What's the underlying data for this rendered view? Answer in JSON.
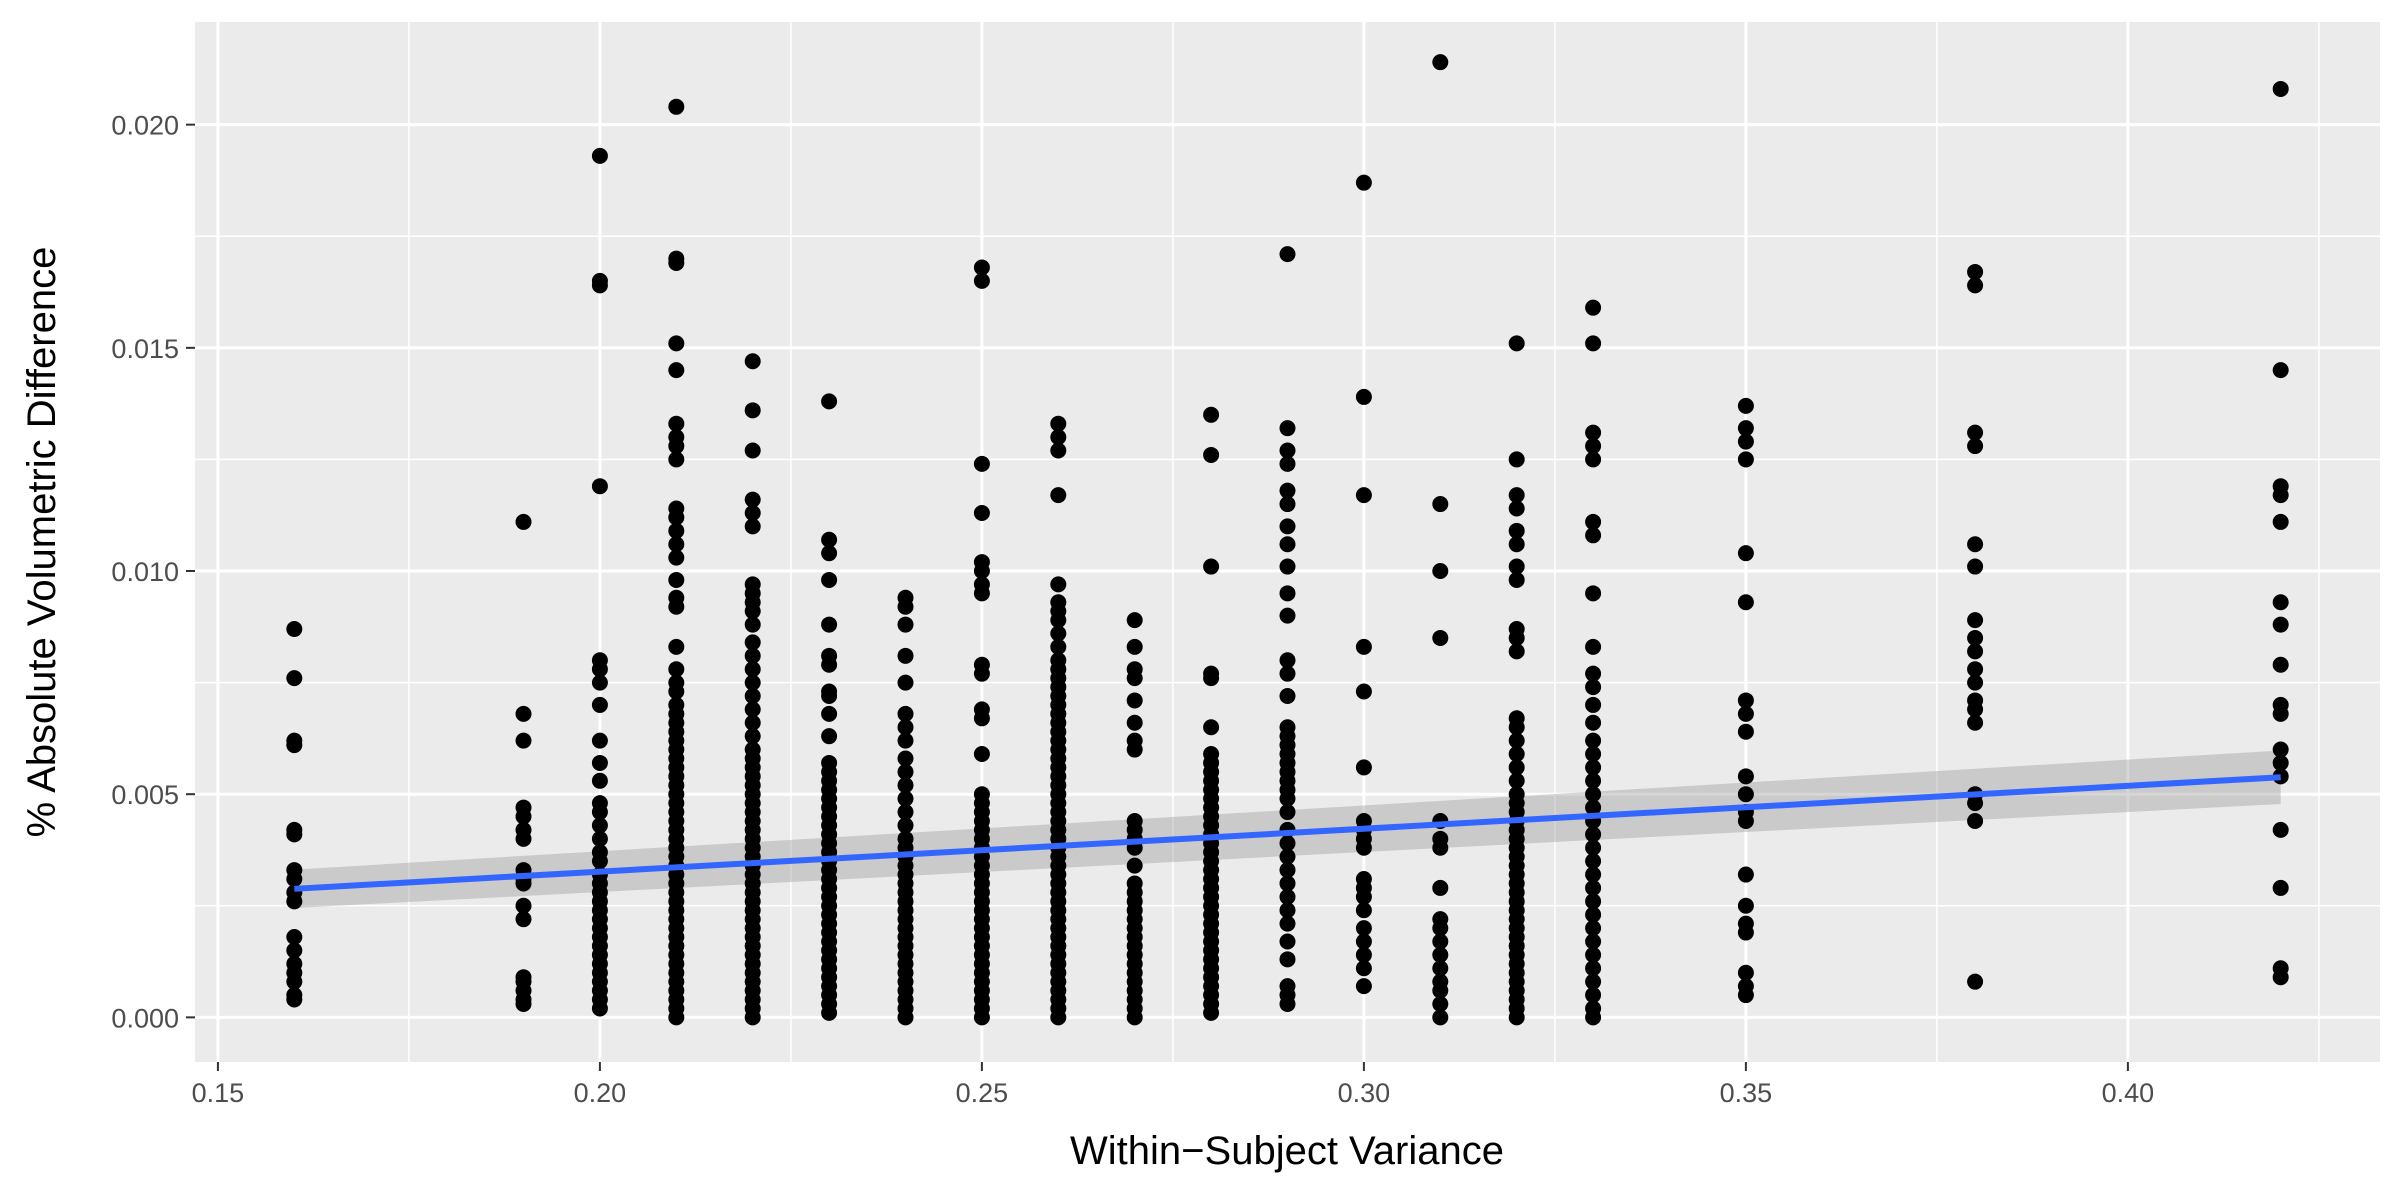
{
  "chart_data": {
    "type": "scatter",
    "title": "",
    "xlabel": "Within−Subject Variance",
    "ylabel": "% Absolute Volumetric Difference",
    "xlim": [
      0.147,
      0.433
    ],
    "ylim": [
      -0.001,
      0.0223
    ],
    "grid": true,
    "legend": "none",
    "x_ticks": [
      0.15,
      0.2,
      0.25,
      0.3,
      0.35,
      0.4
    ],
    "x_tick_labels": [
      "0.15",
      "0.20",
      "0.25",
      "0.30",
      "0.35",
      "0.40"
    ],
    "y_ticks": [
      0.0,
      0.005,
      0.01,
      0.015,
      0.02
    ],
    "y_tick_labels": [
      "0.000",
      "0.005",
      "0.010",
      "0.015",
      "0.020"
    ],
    "colors": {
      "panel": "#ebebeb",
      "grid": "#ffffff",
      "point": "#000000",
      "fit": "#3366ff",
      "band": "#999999"
    },
    "groups": [
      {
        "x": 0.16,
        "y": [
          0.0087,
          0.0076,
          0.0062,
          0.0061,
          0.0042,
          0.0041,
          0.0033,
          0.0031,
          0.0028,
          0.0026,
          0.0018,
          0.0015,
          0.0012,
          0.001,
          0.0008,
          0.0005,
          0.0004
        ]
      },
      {
        "x": 0.19,
        "y": [
          0.0111,
          0.0068,
          0.0062,
          0.0047,
          0.0045,
          0.0042,
          0.004,
          0.0033,
          0.0031,
          0.003,
          0.0025,
          0.0022,
          0.0009,
          0.0008,
          0.0006,
          0.0004,
          0.0003
        ]
      },
      {
        "x": 0.2,
        "y": [
          0.0193,
          0.0165,
          0.0164,
          0.0119,
          0.008,
          0.0078,
          0.0075,
          0.007,
          0.0062,
          0.0057,
          0.0053,
          0.0048,
          0.0046,
          0.0043,
          0.004,
          0.0037,
          0.0035,
          0.0032,
          0.003,
          0.0028,
          0.0026,
          0.0024,
          0.0022,
          0.002,
          0.0018,
          0.0016,
          0.0014,
          0.0012,
          0.001,
          0.0008,
          0.0006,
          0.0004,
          0.0002
        ]
      },
      {
        "x": 0.21,
        "y": [
          0.0204,
          0.017,
          0.0169,
          0.0151,
          0.0145,
          0.0133,
          0.013,
          0.0128,
          0.0125,
          0.0114,
          0.0112,
          0.0109,
          0.0106,
          0.0103,
          0.0098,
          0.0094,
          0.0092,
          0.0083,
          0.0078,
          0.0075,
          0.0073,
          0.007,
          0.0068,
          0.0066,
          0.0064,
          0.0062,
          0.006,
          0.0058,
          0.0056,
          0.0054,
          0.0052,
          0.005,
          0.0048,
          0.0046,
          0.0044,
          0.0042,
          0.004,
          0.0038,
          0.0036,
          0.0034,
          0.0032,
          0.003,
          0.0028,
          0.0026,
          0.0024,
          0.0022,
          0.002,
          0.0018,
          0.0016,
          0.0014,
          0.0012,
          0.001,
          0.0008,
          0.0006,
          0.0004,
          0.0002,
          0.0
        ]
      },
      {
        "x": 0.22,
        "y": [
          0.0147,
          0.0136,
          0.0127,
          0.0116,
          0.0113,
          0.011,
          0.0097,
          0.0095,
          0.0093,
          0.0091,
          0.0088,
          0.0084,
          0.0081,
          0.0078,
          0.0075,
          0.0072,
          0.0069,
          0.0066,
          0.0063,
          0.006,
          0.0058,
          0.0056,
          0.0054,
          0.0052,
          0.005,
          0.0048,
          0.0046,
          0.0044,
          0.0042,
          0.004,
          0.0038,
          0.0036,
          0.0034,
          0.0032,
          0.003,
          0.0028,
          0.0026,
          0.0024,
          0.0022,
          0.002,
          0.0018,
          0.0016,
          0.0014,
          0.0012,
          0.001,
          0.0008,
          0.0006,
          0.0004,
          0.0002,
          0.0
        ]
      },
      {
        "x": 0.23,
        "y": [
          0.0138,
          0.0107,
          0.0104,
          0.0098,
          0.0088,
          0.0081,
          0.0079,
          0.0073,
          0.0072,
          0.0068,
          0.0063,
          0.0057,
          0.0055,
          0.0053,
          0.0051,
          0.0049,
          0.0047,
          0.0045,
          0.0043,
          0.0041,
          0.0039,
          0.0037,
          0.0035,
          0.0033,
          0.0031,
          0.0029,
          0.0027,
          0.0025,
          0.0023,
          0.0021,
          0.0019,
          0.0017,
          0.0015,
          0.0013,
          0.0011,
          0.0009,
          0.0007,
          0.0005,
          0.0003,
          0.0001
        ]
      },
      {
        "x": 0.24,
        "y": [
          0.0094,
          0.0092,
          0.0088,
          0.0081,
          0.0075,
          0.0068,
          0.0065,
          0.0062,
          0.0058,
          0.0055,
          0.0052,
          0.0049,
          0.0046,
          0.0043,
          0.004,
          0.0038,
          0.0036,
          0.0034,
          0.0032,
          0.003,
          0.0028,
          0.0026,
          0.0024,
          0.0022,
          0.002,
          0.0018,
          0.0016,
          0.0014,
          0.0012,
          0.001,
          0.0008,
          0.0006,
          0.0004,
          0.0002,
          0.0
        ]
      },
      {
        "x": 0.25,
        "y": [
          0.0168,
          0.0165,
          0.0124,
          0.0113,
          0.0102,
          0.01,
          0.0097,
          0.0095,
          0.0079,
          0.0077,
          0.0069,
          0.0067,
          0.0059,
          0.005,
          0.0048,
          0.0046,
          0.0044,
          0.0042,
          0.004,
          0.0038,
          0.0036,
          0.0034,
          0.0032,
          0.003,
          0.0028,
          0.0026,
          0.0024,
          0.0022,
          0.002,
          0.0018,
          0.0016,
          0.0014,
          0.0012,
          0.001,
          0.0008,
          0.0006,
          0.0004,
          0.0002,
          0.0
        ]
      },
      {
        "x": 0.26,
        "y": [
          0.0133,
          0.013,
          0.0127,
          0.0117,
          0.0097,
          0.0093,
          0.0091,
          0.0089,
          0.0086,
          0.0083,
          0.008,
          0.0078,
          0.0076,
          0.0074,
          0.0072,
          0.007,
          0.0068,
          0.0066,
          0.0064,
          0.0062,
          0.006,
          0.0058,
          0.0056,
          0.0054,
          0.0052,
          0.005,
          0.0048,
          0.0046,
          0.0044,
          0.0042,
          0.004,
          0.0038,
          0.0036,
          0.0034,
          0.0032,
          0.003,
          0.0028,
          0.0026,
          0.0024,
          0.0022,
          0.002,
          0.0018,
          0.0016,
          0.0014,
          0.0012,
          0.001,
          0.0008,
          0.0006,
          0.0004,
          0.0002,
          0.0
        ]
      },
      {
        "x": 0.27,
        "y": [
          0.0089,
          0.0083,
          0.0078,
          0.0076,
          0.0071,
          0.0066,
          0.0062,
          0.006,
          0.0044,
          0.0042,
          0.004,
          0.0038,
          0.0034,
          0.003,
          0.0028,
          0.0026,
          0.0024,
          0.0022,
          0.002,
          0.0018,
          0.0016,
          0.0014,
          0.0012,
          0.001,
          0.0008,
          0.0006,
          0.0004,
          0.0002,
          0.0
        ]
      },
      {
        "x": 0.28,
        "y": [
          0.0135,
          0.0126,
          0.0101,
          0.0077,
          0.0076,
          0.0065,
          0.0059,
          0.0057,
          0.0055,
          0.0053,
          0.0051,
          0.0049,
          0.0047,
          0.0045,
          0.0043,
          0.0041,
          0.0039,
          0.0037,
          0.0035,
          0.0033,
          0.0031,
          0.0029,
          0.0027,
          0.0025,
          0.0023,
          0.0021,
          0.0019,
          0.0017,
          0.0015,
          0.0013,
          0.0011,
          0.0009,
          0.0007,
          0.0005,
          0.0003,
          0.0001
        ]
      },
      {
        "x": 0.29,
        "y": [
          0.0171,
          0.0132,
          0.0127,
          0.0124,
          0.0118,
          0.0115,
          0.011,
          0.0106,
          0.0101,
          0.0095,
          0.009,
          0.008,
          0.0077,
          0.0072,
          0.0065,
          0.0063,
          0.0061,
          0.0059,
          0.0057,
          0.0055,
          0.0053,
          0.0051,
          0.0049,
          0.0046,
          0.0042,
          0.0039,
          0.0036,
          0.0033,
          0.003,
          0.0027,
          0.0024,
          0.0021,
          0.0017,
          0.0013,
          0.0007,
          0.0005,
          0.0003
        ]
      },
      {
        "x": 0.3,
        "y": [
          0.0187,
          0.0139,
          0.0117,
          0.0083,
          0.0073,
          0.0056,
          0.0044,
          0.0042,
          0.004,
          0.0038,
          0.0031,
          0.0029,
          0.0027,
          0.0024,
          0.002,
          0.0017,
          0.0014,
          0.0011,
          0.0007
        ]
      },
      {
        "x": 0.31,
        "y": [
          0.0214,
          0.0115,
          0.01,
          0.0085,
          0.0044,
          0.004,
          0.0038,
          0.0029,
          0.0022,
          0.002,
          0.0017,
          0.0014,
          0.0011,
          0.0008,
          0.0006,
          0.0003,
          0.0
        ]
      },
      {
        "x": 0.32,
        "y": [
          0.0151,
          0.0125,
          0.0117,
          0.0114,
          0.0109,
          0.0106,
          0.0101,
          0.0098,
          0.0087,
          0.0085,
          0.0082,
          0.0067,
          0.0065,
          0.0062,
          0.0059,
          0.0056,
          0.0053,
          0.005,
          0.0048,
          0.0046,
          0.0044,
          0.0042,
          0.004,
          0.0038,
          0.0036,
          0.0034,
          0.0032,
          0.003,
          0.0028,
          0.0026,
          0.0024,
          0.0022,
          0.002,
          0.0018,
          0.0016,
          0.0014,
          0.0012,
          0.001,
          0.0008,
          0.0006,
          0.0004,
          0.0002,
          0.0
        ]
      },
      {
        "x": 0.33,
        "y": [
          0.0159,
          0.0151,
          0.0131,
          0.0128,
          0.0125,
          0.0111,
          0.0108,
          0.0095,
          0.0083,
          0.0077,
          0.0074,
          0.007,
          0.0066,
          0.0062,
          0.0059,
          0.0056,
          0.0053,
          0.005,
          0.0047,
          0.0044,
          0.0041,
          0.0038,
          0.0035,
          0.0032,
          0.0029,
          0.0026,
          0.0023,
          0.002,
          0.0017,
          0.0014,
          0.0011,
          0.0008,
          0.0005,
          0.0002,
          0.0
        ]
      },
      {
        "x": 0.35,
        "y": [
          0.0137,
          0.0132,
          0.0129,
          0.0125,
          0.0104,
          0.0093,
          0.0071,
          0.0068,
          0.0064,
          0.0054,
          0.005,
          0.0046,
          0.0044,
          0.0032,
          0.0025,
          0.0021,
          0.0019,
          0.001,
          0.0007,
          0.0005
        ]
      },
      {
        "x": 0.38,
        "y": [
          0.0167,
          0.0164,
          0.0131,
          0.0128,
          0.0106,
          0.0101,
          0.0089,
          0.0085,
          0.0082,
          0.0078,
          0.0075,
          0.0071,
          0.0069,
          0.0066,
          0.005,
          0.0048,
          0.0044,
          0.0008
        ]
      },
      {
        "x": 0.42,
        "y": [
          0.0208,
          0.0145,
          0.0119,
          0.0117,
          0.0111,
          0.0093,
          0.0088,
          0.0079,
          0.007,
          0.0068,
          0.006,
          0.0057,
          0.0054,
          0.0042,
          0.0029,
          0.0011,
          0.0009
        ]
      }
    ],
    "fit": {
      "method": "linear",
      "x": [
        0.16,
        0.42
      ],
      "y": [
        0.00288,
        0.00538
      ],
      "ci_lower": [
        0.00245,
        0.00478
      ],
      "ci_upper": [
        0.00331,
        0.00598
      ]
    }
  }
}
